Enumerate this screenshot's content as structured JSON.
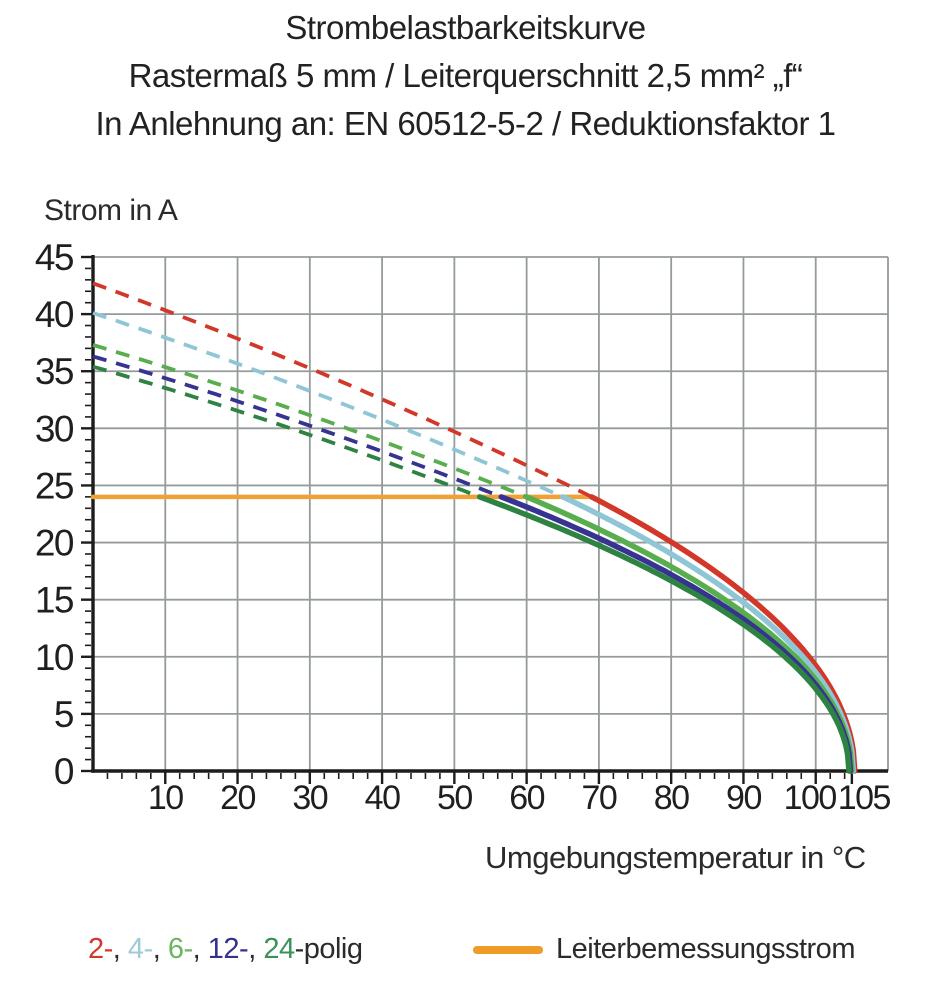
{
  "title": {
    "line1": "Strombelastbarkeitskurve",
    "line2": "Rastermaß 5 mm / Leiterquerschnitt 2,5 mm² „f“",
    "line3": "In Anlehnung an: EN 60512-5-2 / Reduktionsfaktor 1"
  },
  "chart_data": {
    "type": "line",
    "title": "Strombelastbarkeitskurve",
    "xlabel": "Umgebungstemperatur in °C",
    "ylabel": "Strom in A",
    "xlim": [
      0,
      110
    ],
    "ylim": [
      0,
      45
    ],
    "x_ticks": [
      10,
      20,
      30,
      40,
      50,
      60,
      70,
      80,
      90,
      100,
      105
    ],
    "y_ticks": [
      0,
      5,
      10,
      15,
      20,
      25,
      30,
      35,
      40,
      45
    ],
    "grid": true,
    "legend_position": "bottom",
    "rated_current_A": 24,
    "rated_line": {
      "label": "Leiterbemessungsstrom",
      "color": "#f0a136",
      "from_C": 0,
      "to_C": 69,
      "current_A": 24
    },
    "series": [
      {
        "label": "2-polig",
        "color": "#d2382a",
        "style": "dashed-above-rated-then-solid",
        "current_at_0C_A": 42.7,
        "meets_rated_at_C": 69,
        "zero_at_C": 105.4,
        "samples": {
          "T_C": [
            0,
            20,
            40,
            60,
            80,
            90,
            100,
            105.4
          ],
          "I_A": [
            42.7,
            37.9,
            32.6,
            27.0,
            20.2,
            15.5,
            9.3,
            0
          ]
        }
      },
      {
        "label": "4-polig",
        "color": "#8fc6d6",
        "style": "dashed-above-rated-then-solid",
        "current_at_0C_A": 40.1,
        "meets_rated_at_C": 65,
        "zero_at_C": 105.2,
        "samples": {
          "T_C": [
            0,
            20,
            40,
            60,
            80,
            90,
            100,
            105.2
          ],
          "I_A": [
            40.1,
            35.7,
            30.7,
            25.3,
            19.0,
            14.8,
            8.6,
            0
          ]
        }
      },
      {
        "label": "6-polig",
        "color": "#58ae4f",
        "style": "dashed-above-rated-then-solid",
        "current_at_0C_A": 37.3,
        "meets_rated_at_C": 60,
        "zero_at_C": 105.0,
        "samples": {
          "T_C": [
            0,
            20,
            40,
            60,
            80,
            90,
            100,
            105.0
          ],
          "I_A": [
            37.3,
            33.3,
            28.9,
            24.0,
            17.9,
            13.9,
            8.0,
            0
          ]
        }
      },
      {
        "label": "12-polig",
        "color": "#363490",
        "style": "dashed-above-rated-then-solid",
        "current_at_0C_A": 36.3,
        "meets_rated_at_C": 56.5,
        "zero_at_C": 104.8,
        "samples": {
          "T_C": [
            0,
            20,
            40,
            60,
            80,
            90,
            100,
            104.8
          ],
          "I_A": [
            36.3,
            32.4,
            28.0,
            23.1,
            17.2,
            13.3,
            7.6,
            0
          ]
        }
      },
      {
        "label": "24-polig",
        "color": "#2e8343",
        "style": "dashed-above-rated-then-solid",
        "current_at_0C_A": 35.4,
        "meets_rated_at_C": 53.5,
        "zero_at_C": 104.6,
        "samples": {
          "T_C": [
            0,
            20,
            40,
            60,
            80,
            90,
            100,
            104.6
          ],
          "I_A": [
            35.4,
            31.5,
            27.2,
            22.4,
            16.6,
            12.8,
            7.2,
            0
          ]
        }
      }
    ],
    "colors": {
      "grid": "#949b9a",
      "axis": "#1c1c1c",
      "tick_label": "#1f1f1f",
      "background": "#ffffff"
    }
  },
  "legend": {
    "default_color": "#2b2b2b",
    "parts": [
      {
        "text": "2-",
        "color": "#d2382a"
      },
      {
        "text": ", "
      },
      {
        "text": "4-",
        "color": "#9ccbd7"
      },
      {
        "text": ", "
      },
      {
        "text": "6-",
        "color": "#6cb45e"
      },
      {
        "text": ", "
      },
      {
        "text": "12-",
        "color": "#34318c"
      },
      {
        "text": ", "
      },
      {
        "text": "24",
        "color": "#3c9158"
      },
      {
        "text": "-polig"
      }
    ],
    "rated": {
      "label": "Leiterbemessungsstrom",
      "color": "#ef9b28"
    }
  }
}
